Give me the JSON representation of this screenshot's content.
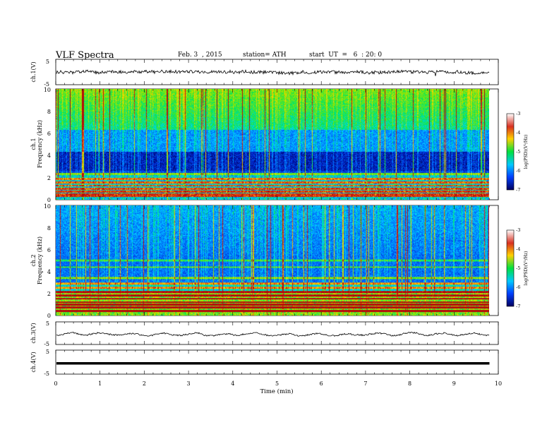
{
  "header": {
    "title": "VLF  Spectra",
    "date": "Feb. 3  , 2015",
    "station": "station= ATH",
    "start": "start  UT  =   6  : 20: 0"
  },
  "chart_data": [
    {
      "type": "line",
      "panel": "ch1-waveform",
      "ylabel": "ch.1(V)",
      "yticks": [
        "5",
        "-5"
      ],
      "ylim": [
        -5,
        5
      ],
      "xlim": [
        0,
        10
      ],
      "data_end_min": 9.8,
      "level": 0,
      "noise_amplitude": 1.2
    },
    {
      "type": "heatmap",
      "panel": "ch1-spectrogram",
      "ylabel": "ch.1",
      "ylabel2": "Frequency  (kHz)",
      "yticks": [
        "0",
        "2",
        "4",
        "6",
        "8",
        "10"
      ],
      "ylim": [
        0,
        10
      ],
      "xlim": [
        0,
        10
      ],
      "data_end_min": 9.8,
      "colorbar": {
        "label": "log(PSD)(V²/Hz)",
        "ticks": [
          "-3",
          "-4",
          "-5",
          "-6",
          "-7"
        ],
        "range": [
          -7,
          -3
        ],
        "colors": [
          "#ffffff",
          "#d83020",
          "#ffd000",
          "#00e040",
          "#00c8ff",
          "#0040ff",
          "#000060"
        ]
      },
      "strong_bands_khz": [
        0.3,
        0.45,
        0.7,
        0.95,
        1.25,
        1.55,
        1.85,
        2.3
      ]
    },
    {
      "type": "heatmap",
      "panel": "ch2-spectrogram",
      "ylabel": "ch.2",
      "ylabel2": "Frequency  (kHz)",
      "yticks": [
        "0",
        "2",
        "4",
        "6",
        "8",
        "10"
      ],
      "ylim": [
        0,
        10
      ],
      "xlim": [
        0,
        10
      ],
      "data_end_min": 9.8,
      "colorbar": {
        "label": "log(PSD)(V²/Hz)",
        "ticks": [
          "-3",
          "-4",
          "-5",
          "-6",
          "-7"
        ],
        "range": [
          -7,
          -3
        ]
      },
      "strong_bands_khz": [
        0.4,
        0.7,
        0.95,
        1.2,
        1.5,
        1.8,
        2.1,
        2.5,
        2.9,
        3.4,
        4.4,
        5.0
      ]
    },
    {
      "type": "line",
      "panel": "ch3-waveform",
      "ylabel": "ch.3(V)",
      "yticks": [
        "5",
        "-5"
      ],
      "ylim": [
        -5,
        5
      ],
      "xlim": [
        0,
        10
      ],
      "data_end_min": 9.8,
      "level": -0.5,
      "noise_amplitude": 0.6
    },
    {
      "type": "line",
      "panel": "ch4-waveform",
      "ylabel": "ch.4(V)",
      "yticks": [
        "5",
        "-5"
      ],
      "ylim": [
        -5,
        5
      ],
      "xlim": [
        0,
        10
      ],
      "data_end_min": 9.8,
      "level": -0.5,
      "noise_amplitude": 0
    }
  ],
  "xaxis": {
    "label": "Time  (min)",
    "ticks": [
      "0",
      "1",
      "2",
      "3",
      "4",
      "5",
      "6",
      "7",
      "8",
      "9",
      "10"
    ]
  }
}
